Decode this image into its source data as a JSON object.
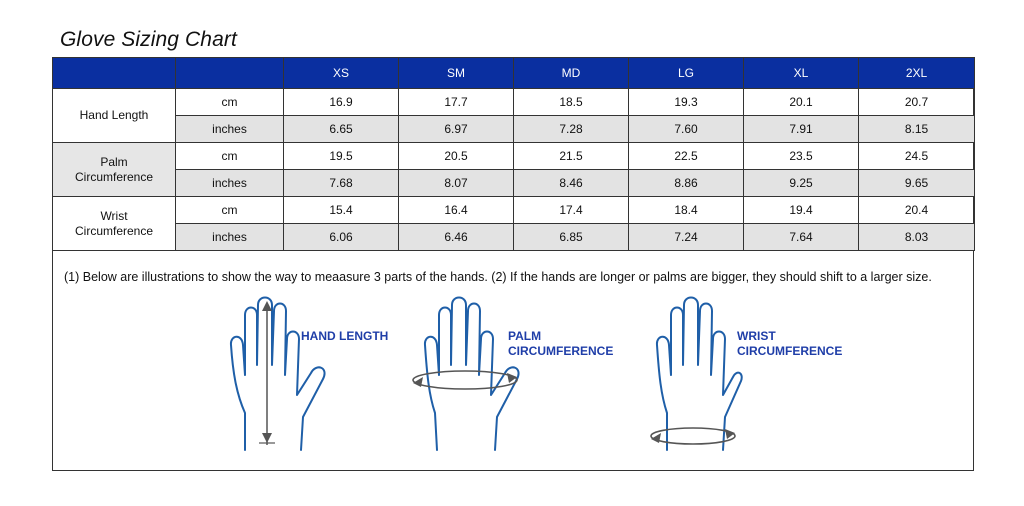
{
  "title": "Glove Sizing Chart",
  "table": {
    "sizes": [
      "XS",
      "SM",
      "MD",
      "LG",
      "XL",
      "2XL"
    ],
    "rows": [
      {
        "param": "Hand Length",
        "unit": "cm",
        "values": [
          "16.9",
          "17.7",
          "18.5",
          "19.3",
          "20.1",
          "20.7"
        ]
      },
      {
        "param": "Hand Length",
        "unit": "inches",
        "values": [
          "6.65",
          "6.97",
          "7.28",
          "7.60",
          "7.91",
          "8.15"
        ]
      },
      {
        "param": "Palm Circumference",
        "unit": "cm",
        "values": [
          "19.5",
          "20.5",
          "21.5",
          "22.5",
          "23.5",
          "24.5"
        ]
      },
      {
        "param": "Palm Circumference",
        "unit": "inches",
        "values": [
          "7.68",
          "8.07",
          "8.46",
          "8.86",
          "9.25",
          "9.65"
        ]
      },
      {
        "param": "Wrist Circumference",
        "unit": "cm",
        "values": [
          "15.4",
          "16.4",
          "17.4",
          "18.4",
          "19.4",
          "20.4"
        ]
      },
      {
        "param": "Wrist Circumference",
        "unit": "inches",
        "values": [
          "6.06",
          "6.46",
          "6.85",
          "7.24",
          "7.64",
          "8.03"
        ]
      }
    ],
    "params": [
      "Hand Length",
      "Palm\nCircumference",
      "Wrist\nCircumference"
    ]
  },
  "note": "(1) Below are illustrations to show the way to meaasure 3 parts of the hands. (2) If the hands are longer or palms are bigger, they should shift to a larger size.",
  "illustrations": [
    {
      "label_line1": "HAND LENGTH",
      "label_line2": ""
    },
    {
      "label_line1": "PALM",
      "label_line2": "CIRCUMFERENCE"
    },
    {
      "label_line1": "WRIST",
      "label_line2": "CIRCUMFERENCE"
    }
  ],
  "colors": {
    "header_bg": "#0a2fa0",
    "hand_outline": "#1f5fa8",
    "label": "#1f3ea8",
    "shade": "#e3e3e3"
  }
}
